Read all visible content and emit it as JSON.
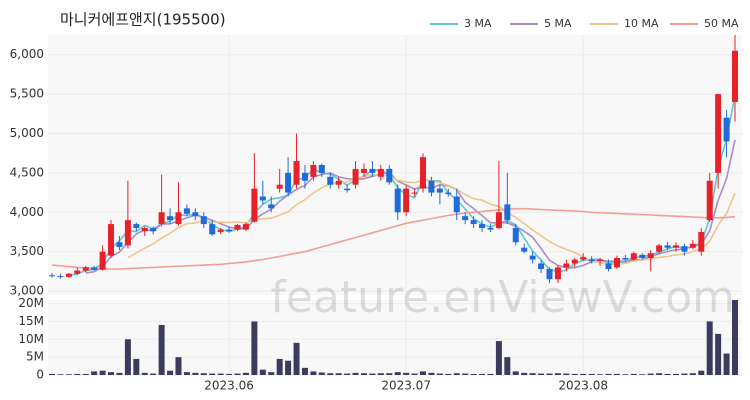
{
  "chart_data": {
    "type": "candlestick",
    "title": "마니커에프앤지(195500)",
    "watermark": "feature.enViewV.com",
    "up_color": "#e8202a",
    "down_color": "#1f6bd9",
    "volume_color": "#3b3b60",
    "open": [
      3200,
      3190,
      3180,
      3220,
      3260,
      3300,
      3270,
      3450,
      3620,
      3580,
      3850,
      3760,
      3800,
      3850,
      3950,
      3850,
      4050,
      4000,
      3950,
      3850,
      3750,
      3780,
      3780,
      3780,
      3880,
      4200,
      4100,
      4300,
      4500,
      4350,
      4500,
      4450,
      4600,
      4450,
      4350,
      4300,
      4350,
      4500,
      4550,
      4450,
      4550,
      4300,
      4000,
      4250,
      4300,
      4400,
      4300,
      4250,
      4200,
      3950,
      3900,
      3850,
      3800,
      3800,
      4100,
      3800,
      3550,
      3450,
      3350,
      3280,
      3150,
      3300,
      3350,
      3400,
      3400,
      3380,
      3350,
      3300,
      3420,
      3400,
      3460,
      3420,
      3500,
      3580,
      3550,
      3570,
      3550,
      3500,
      3900,
      4500,
      5200,
      5400
    ],
    "high": [
      3230,
      3220,
      3230,
      3300,
      3320,
      3320,
      3580,
      3900,
      3700,
      4400,
      3870,
      3820,
      3820,
      4480,
      4050,
      4380,
      4100,
      4050,
      4000,
      3900,
      3800,
      3820,
      3850,
      3870,
      4750,
      4400,
      4200,
      4550,
      4700,
      5000,
      4600,
      4650,
      4620,
      4500,
      4450,
      4350,
      4650,
      4620,
      4650,
      4600,
      4600,
      4350,
      4350,
      4300,
      4750,
      4450,
      4350,
      4300,
      4300,
      4000,
      3950,
      3900,
      3850,
      4650,
      4500,
      3850,
      3600,
      3500,
      3400,
      3300,
      3330,
      3400,
      3420,
      3480,
      3440,
      3420,
      3400,
      3450,
      3460,
      3500,
      3480,
      3520,
      3600,
      3620,
      3620,
      3600,
      3650,
      3800,
      4500,
      5500,
      5300,
      6250
    ],
    "low": [
      3170,
      3160,
      3170,
      3200,
      3240,
      3260,
      3260,
      3420,
      3520,
      3540,
      3760,
      3700,
      3720,
      3820,
      3850,
      3830,
      3950,
      3900,
      3800,
      3700,
      3720,
      3740,
      3760,
      3760,
      3870,
      4100,
      4000,
      4250,
      4200,
      4300,
      4300,
      4400,
      4450,
      4300,
      4300,
      4250,
      4300,
      4450,
      4450,
      4400,
      4350,
      3900,
      3950,
      4200,
      4250,
      4200,
      4100,
      4200,
      3900,
      3850,
      3800,
      3750,
      3750,
      3780,
      3850,
      3580,
      3480,
      3350,
      3230,
      3100,
      3100,
      3250,
      3300,
      3380,
      3350,
      3320,
      3250,
      3280,
      3380,
      3380,
      3400,
      3250,
      3480,
      3520,
      3500,
      3450,
      3530,
      3450,
      3880,
      4300,
      4700,
      5150
    ],
    "close": [
      3190,
      3180,
      3220,
      3260,
      3300,
      3270,
      3500,
      3850,
      3560,
      3900,
      3800,
      3800,
      3760,
      4000,
      3900,
      4000,
      3980,
      3950,
      3850,
      3720,
      3780,
      3760,
      3840,
      3850,
      4300,
      4150,
      4050,
      4350,
      4250,
      4650,
      4400,
      4600,
      4500,
      4350,
      4400,
      4280,
      4550,
      4550,
      4500,
      4550,
      4380,
      4000,
      4300,
      4250,
      4700,
      4250,
      4250,
      4230,
      4000,
      3900,
      3850,
      3800,
      3780,
      4000,
      3900,
      3620,
      3500,
      3400,
      3280,
      3150,
      3300,
      3350,
      3400,
      3430,
      3380,
      3400,
      3280,
      3420,
      3400,
      3480,
      3420,
      3480,
      3580,
      3550,
      3580,
      3500,
      3600,
      3750,
      4400,
      5500,
      4900,
      6050
    ],
    "volume": [
      300000,
      200000,
      200000,
      300000,
      300000,
      1000000,
      1200000,
      800000,
      600000,
      10000000,
      4500000,
      600000,
      400000,
      14000000,
      1200000,
      5000000,
      800000,
      600000,
      500000,
      400000,
      400000,
      300000,
      400000,
      600000,
      15000000,
      1500000,
      800000,
      4500000,
      4000000,
      9000000,
      2000000,
      1000000,
      700000,
      500000,
      500000,
      400000,
      600000,
      500000,
      400000,
      500000,
      500000,
      800000,
      600000,
      400000,
      1000000,
      600000,
      400000,
      300000,
      500000,
      400000,
      300000,
      300000,
      300000,
      9500000,
      5000000,
      1000000,
      600000,
      500000,
      400000,
      400000,
      500000,
      400000,
      300000,
      300000,
      300000,
      200000,
      300000,
      300000,
      200000,
      300000,
      200000,
      400000,
      500000,
      300000,
      300000,
      400000,
      500000,
      1200000,
      15000000,
      11500000,
      6000000,
      21000000
    ],
    "moving_averages": [
      {
        "name": "3 MA",
        "color": "#5ec8d0",
        "period": 3
      },
      {
        "name": "5 MA",
        "color": "#a98dc6",
        "period": 5
      },
      {
        "name": "10 MA",
        "color": "#f0c48a",
        "period": 10
      },
      {
        "name": "50 MA",
        "color": "#f0a090",
        "values": [
          3330,
          3320,
          3310,
          3300,
          3295,
          3290,
          3285,
          3280,
          3280,
          3285,
          3290,
          3295,
          3300,
          3305,
          3310,
          3315,
          3320,
          3325,
          3330,
          3335,
          3340,
          3350,
          3360,
          3370,
          3385,
          3400,
          3420,
          3440,
          3460,
          3480,
          3500,
          3530,
          3560,
          3590,
          3620,
          3650,
          3680,
          3710,
          3740,
          3770,
          3800,
          3830,
          3860,
          3880,
          3900,
          3920,
          3940,
          3960,
          3975,
          3990,
          4000,
          4010,
          4020,
          4030,
          4040,
          4045,
          4045,
          4040,
          4035,
          4030,
          4025,
          4020,
          4015,
          4010,
          4000,
          3995,
          3990,
          3985,
          3980,
          3975,
          3970,
          3965,
          3960,
          3955,
          3950,
          3945,
          3940,
          3935,
          3930,
          3930,
          3935,
          3945
        ]
      }
    ],
    "ylim": [
      2950,
      6250
    ],
    "yticks": [
      {
        "value": 3000,
        "label": "3,000"
      },
      {
        "value": 3500,
        "label": "3,500"
      },
      {
        "value": 4000,
        "label": "4,000"
      },
      {
        "value": 4500,
        "label": "4,500"
      },
      {
        "value": 5000,
        "label": "5,000"
      },
      {
        "value": 5500,
        "label": "5,500"
      },
      {
        "value": 6000,
        "label": "6,000"
      }
    ],
    "volume_ylim": [
      0,
      21000000
    ],
    "volume_yticks": [
      0,
      {
        "value": 5000000,
        "label": "5M"
      },
      {
        "value": 10000000,
        "label": "10M"
      },
      {
        "value": 15000000,
        "label": "15M"
      },
      {
        "value": 20000000,
        "label": "20M"
      }
    ],
    "xticks": [
      {
        "value": 21,
        "label": "2023.06"
      },
      {
        "value": 42,
        "label": "2023.07"
      },
      {
        "value": 63,
        "label": "2023.08"
      }
    ]
  }
}
